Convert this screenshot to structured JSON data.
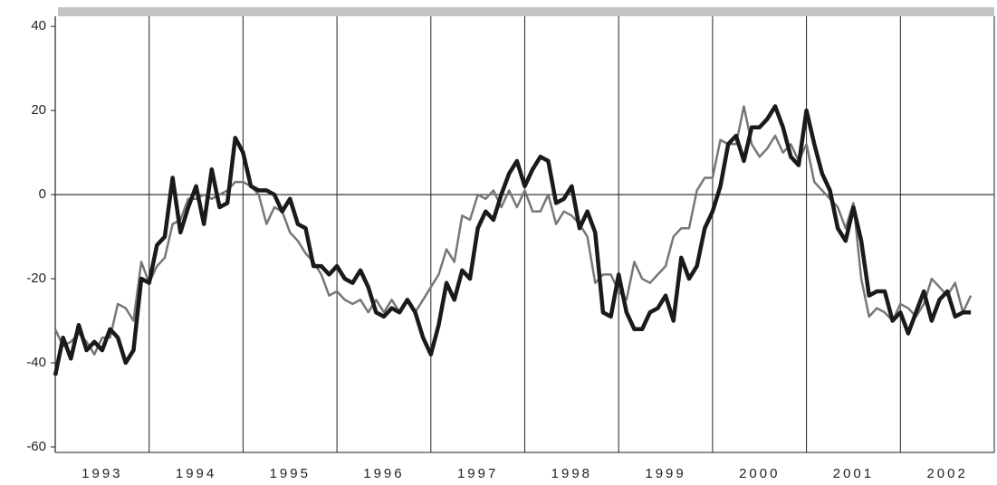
{
  "chart_data": {
    "type": "line",
    "categories": [
      null,
      null,
      null,
      null,
      null,
      null,
      "1993",
      null,
      null,
      null,
      null,
      null,
      null,
      null,
      null,
      null,
      null,
      null,
      "1994",
      null,
      null,
      null,
      null,
      null,
      null,
      null,
      null,
      null,
      null,
      null,
      "1995",
      null,
      null,
      null,
      null,
      null,
      null,
      null,
      null,
      null,
      null,
      null,
      "1996",
      null,
      null,
      null,
      null,
      null,
      null,
      null,
      null,
      null,
      null,
      null,
      "1997",
      null,
      null,
      null,
      null,
      null,
      null,
      null,
      null,
      null,
      null,
      null,
      "1998",
      null,
      null,
      null,
      null,
      null,
      null,
      null,
      null,
      null,
      null,
      null,
      "1999",
      null,
      null,
      null,
      null,
      null,
      null,
      null,
      null,
      null,
      null,
      null,
      "2000",
      null,
      null,
      null,
      null,
      null,
      null,
      null,
      null,
      null,
      null,
      null,
      "2001",
      null,
      null,
      null,
      null,
      null,
      null,
      null,
      null,
      null,
      null,
      null,
      "2002",
      null,
      null,
      null,
      null,
      null
    ],
    "series": [
      {
        "color": "#777777",
        "values": [
          -32,
          -36,
          -35,
          -33,
          -35,
          -38,
          -34,
          -34,
          -26,
          -27,
          -30,
          -16,
          -21,
          -17,
          -15,
          -7,
          -6,
          -1,
          -1,
          0,
          -1,
          0,
          1,
          3,
          3,
          2,
          0,
          -7,
          -3,
          -4,
          -9,
          -11,
          -14,
          -16,
          -19,
          -24,
          -23,
          -25,
          -26,
          -25,
          -28,
          -25,
          -28,
          -25,
          -28,
          -25,
          -28,
          -25,
          -22,
          -19,
          -13,
          -16,
          -5,
          -6,
          0,
          -1,
          1,
          -3,
          1,
          -3,
          1,
          -4,
          -4,
          0,
          -7,
          -4,
          -5,
          -7,
          -10,
          -21,
          -19,
          -19,
          -23,
          -25,
          -16,
          -20,
          -21,
          -19,
          -17,
          -10,
          -8,
          -8,
          1,
          4,
          4,
          13,
          12,
          12,
          21,
          12,
          9,
          11,
          14,
          10,
          12,
          8,
          12,
          3,
          1,
          -1,
          -3,
          -8,
          -2,
          -20,
          -29,
          -27,
          -28,
          -30,
          -26,
          -27,
          -29,
          -26,
          -20,
          -22,
          -24,
          -21,
          -28,
          -24,
          null,
          null
        ]
      },
      {
        "color": "#1a1a1a",
        "values": [
          -43,
          -34,
          -39,
          -31,
          -37,
          -35,
          -37,
          -32,
          -34,
          -40,
          -37,
          -20,
          -21,
          -12,
          -10,
          4,
          -9,
          -3,
          2,
          -7,
          6,
          -3,
          -2,
          13.5,
          10,
          2,
          1,
          1,
          0,
          -4,
          -1,
          -7,
          -8,
          -17,
          -17,
          -19,
          -17,
          -20,
          -21,
          -18,
          -22,
          -28,
          -29,
          -27,
          -28,
          -25,
          -28,
          -34,
          -38,
          -31,
          -21,
          -25,
          -18,
          -20,
          -8,
          -4,
          -6,
          0,
          5,
          8,
          2,
          6,
          9,
          8,
          -2,
          -1,
          2,
          -8,
          -4,
          -9,
          -28,
          -29,
          -19,
          -28,
          -32,
          -32,
          -28,
          -27,
          -24,
          -30,
          -15,
          -20,
          -17,
          -8,
          -4,
          2,
          12,
          14,
          8,
          16,
          16,
          18,
          21,
          16,
          9,
          7,
          20,
          12,
          5,
          1,
          -8,
          -11,
          -3,
          -11,
          -24,
          -23,
          -23,
          -30,
          -28,
          -33,
          -28,
          -23,
          -30,
          -25,
          -23,
          -29,
          -28,
          -28,
          null,
          null
        ]
      }
    ],
    "ylim": [
      -61.3,
      42.4
    ],
    "yticks": [
      -60,
      -40,
      -20,
      0,
      20,
      40
    ]
  }
}
